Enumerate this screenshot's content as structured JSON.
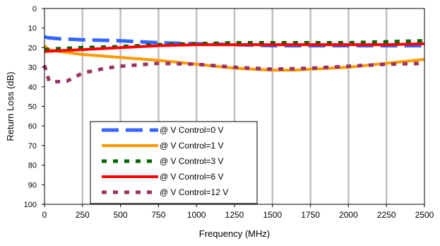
{
  "chart_data": {
    "type": "line",
    "title": "",
    "xlabel": "Frequency (MHz)",
    "ylabel": "Return Loss (dB)",
    "xlim": [
      0,
      2500
    ],
    "ylim": [
      0,
      100
    ],
    "y_inverted": true,
    "x_ticks": [
      "0",
      "250",
      "500",
      "750",
      "1000",
      "1250",
      "1500",
      "1750",
      "2000",
      "2250",
      "2500"
    ],
    "y_ticks": [
      "0",
      "10",
      "20",
      "30",
      "40",
      "50",
      "60",
      "70",
      "80",
      "90",
      "100"
    ],
    "grid": "vertical",
    "legend_position": "lower-left",
    "series": [
      {
        "name": "@ V Control=0 V",
        "color": "#3366ff",
        "dash": "long-dash",
        "x": [
          0,
          25,
          100,
          250,
          500,
          750,
          1000,
          1250,
          1500,
          1750,
          2000,
          2250,
          2500
        ],
        "y": [
          14.5,
          15,
          15.5,
          16,
          16.5,
          17.5,
          18,
          18.5,
          19,
          19,
          19,
          19,
          19
        ]
      },
      {
        "name": "@ V Control=1 V",
        "color": "#ff9900",
        "dash": "solid",
        "x": [
          0,
          25,
          100,
          250,
          500,
          750,
          1000,
          1250,
          1500,
          1650,
          1750,
          2000,
          2250,
          2500
        ],
        "y": [
          19,
          21,
          22,
          23.5,
          25,
          26.5,
          28.5,
          30.5,
          31.5,
          31.5,
          31,
          30,
          28,
          26
        ]
      },
      {
        "name": "@ V Control=3 V",
        "color": "#006600",
        "dash": "square-dot",
        "x": [
          0,
          100,
          250,
          500,
          750,
          1000,
          1250,
          1500,
          1750,
          2000,
          2250,
          2500
        ],
        "y": [
          21,
          20.5,
          20,
          19.5,
          18.5,
          18,
          17.5,
          17.5,
          17.5,
          17.5,
          17,
          16.5
        ]
      },
      {
        "name": "@ V Control=6 V",
        "color": "#ff0000",
        "dash": "solid",
        "x": [
          0,
          100,
          250,
          500,
          750,
          1000,
          1250,
          1500,
          1750,
          2000,
          2250,
          2500
        ],
        "y": [
          22,
          21.5,
          21,
          20,
          19,
          18.5,
          18.5,
          18.5,
          18.5,
          18.5,
          18.5,
          18
        ]
      },
      {
        "name": "@ V Control=12 V",
        "color": "#993366",
        "dash": "square-dot",
        "x": [
          0,
          30,
          60,
          150,
          250,
          400,
          500,
          750,
          1000,
          1250,
          1500,
          1750,
          2000,
          2250,
          2500
        ],
        "y": [
          29,
          37,
          37.5,
          37,
          33,
          30.5,
          29.5,
          28,
          28.5,
          30,
          31,
          30.5,
          29.5,
          28.5,
          28
        ]
      }
    ]
  }
}
